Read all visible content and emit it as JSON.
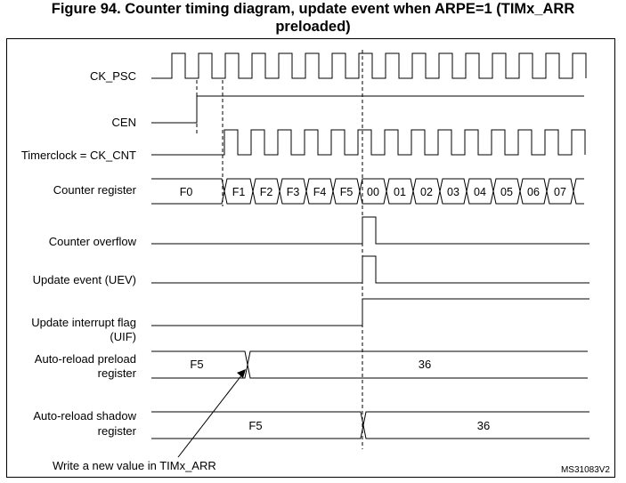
{
  "figure": {
    "title_line1": "Figure 94. Counter timing diagram, update event when ARPE=1 (TIMx_ARR",
    "title_line2": "preloaded)",
    "reference": "MS31083V2"
  },
  "signals": {
    "ck_psc": "CK_PSC",
    "cen": "CEN",
    "timerclock": "Timerclock = CK_CNT",
    "counter_register": "Counter register",
    "counter_overflow": "Counter overflow",
    "update_event": "Update event (UEV)",
    "uif_line1": "Update interrupt flag",
    "uif_line2": "(UIF)",
    "arr_preload_line1": "Auto-reload preload",
    "arr_preload_line2": "register",
    "arr_shadow_line1": "Auto-reload shadow",
    "arr_shadow_line2": "register"
  },
  "counter_values": [
    "F0",
    "F1",
    "F2",
    "F3",
    "F4",
    "F5",
    "00",
    "01",
    "02",
    "03",
    "04",
    "05",
    "06",
    "07"
  ],
  "preload_values": [
    "F5",
    "36"
  ],
  "shadow_values": [
    "F5",
    "36"
  ],
  "annotation": "Write a new value in TIMx_ARR"
}
